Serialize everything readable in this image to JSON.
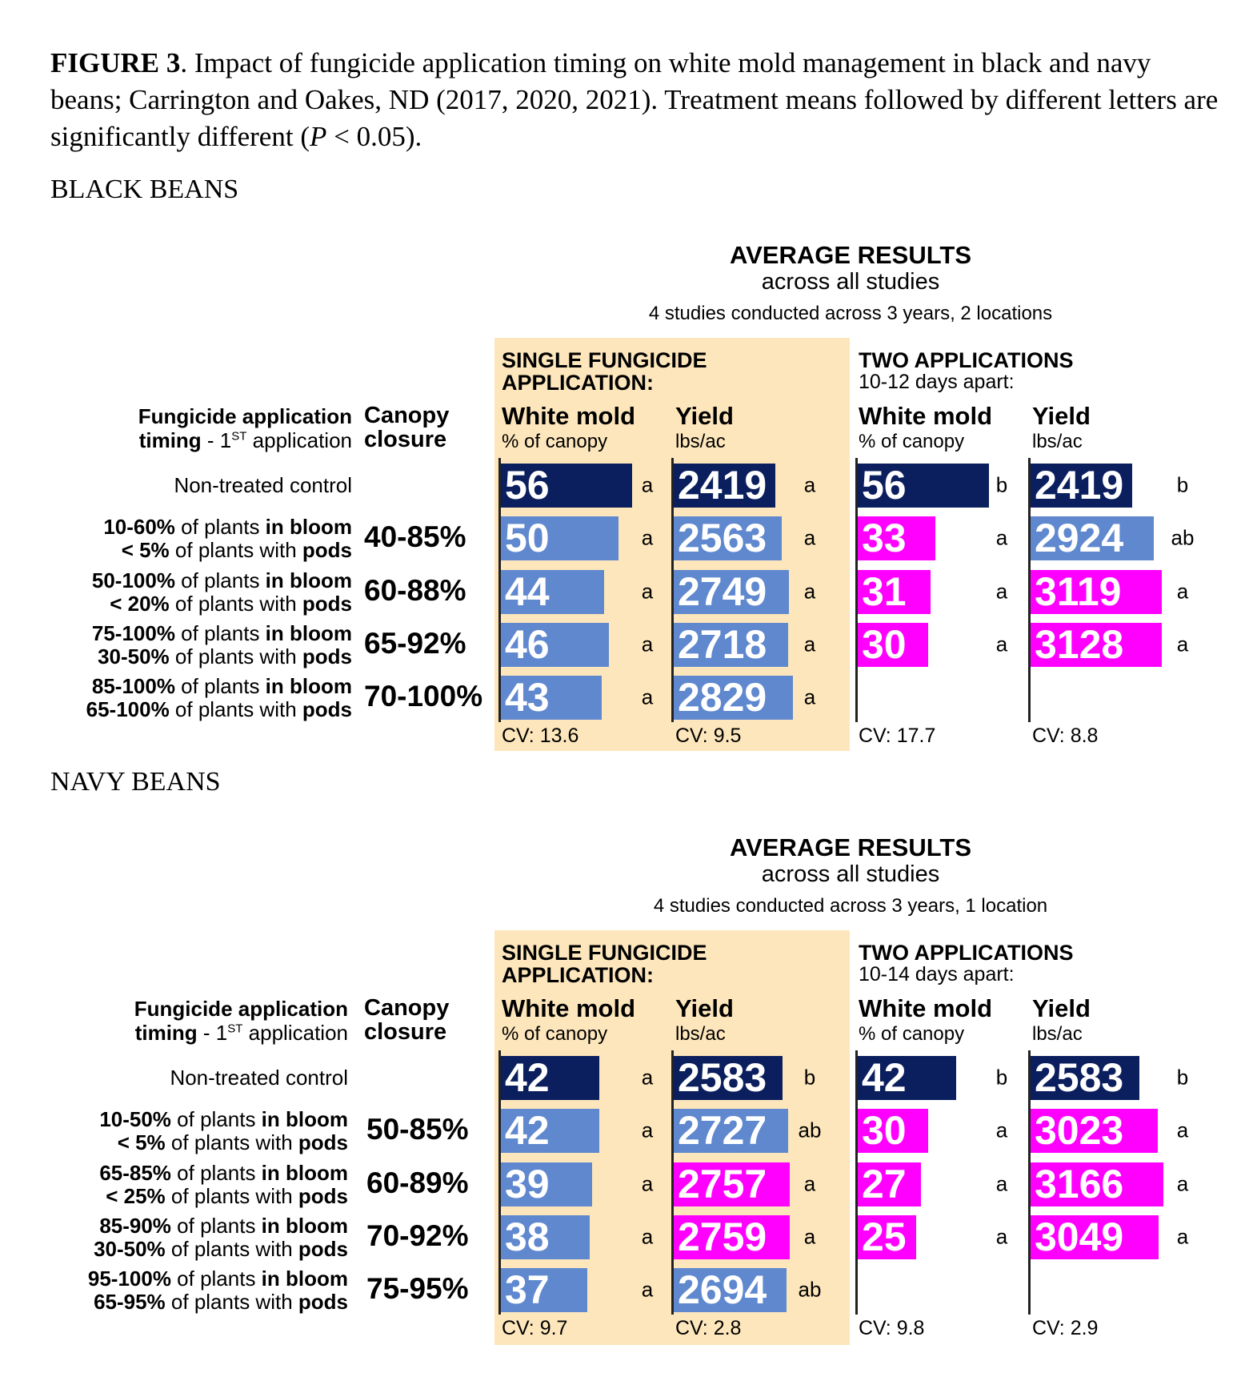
{
  "caption": {
    "label": "FIGURE 3",
    "text": ". Impact of fungicide application timing on white mold management in black and navy beans; Carrington and Oakes, ND (2017, 2020, 2021). Treatment means followed by different letters are significantly different (",
    "p": "P",
    "tail": " < 0.05)."
  },
  "colors": {
    "control": "#0b1f5e",
    "nodiff": "#5f88cf",
    "sig": "#ff00ff",
    "tan": "#fde6bb"
  },
  "chart_data": [
    {
      "type": "bar",
      "title": "BLACK BEANS",
      "avg_title": "AVERAGE RESULTS",
      "avg_sub": "across all studies",
      "avg_note": "4 studies conducted across 3 years, 2 locations",
      "single_header": [
        "SINGLE FUNGICIDE",
        "APPLICATION:"
      ],
      "two_header": "TWO APPLICATIONS",
      "two_sub": "10-12 days apart:",
      "timing_header": [
        [
          {
            "t": "Fungicide application",
            "b": 1
          }
        ],
        [
          {
            "t": "timing",
            "b": 1
          },
          {
            "t": " - 1"
          },
          {
            "t": "ST",
            "sup": 1
          },
          {
            "t": " application"
          }
        ]
      ],
      "canopy_header": [
        "Canopy",
        "closure"
      ],
      "columns": [
        {
          "title": "White mold",
          "unit": "% of canopy",
          "cv": "CV:  13.6"
        },
        {
          "title": "Yield",
          "unit": "lbs/ac",
          "cv": "CV:  9.5"
        },
        {
          "title": "White mold",
          "unit": "% of canopy",
          "cv": "CV:  17.7"
        },
        {
          "title": "Yield",
          "unit": "lbs/ac",
          "cv": "CV:  8.8"
        }
      ],
      "rows": [
        {
          "timing": [
            [
              {
                "t": "Non-treated control"
              }
            ]
          ],
          "canopy": "",
          "cells": [
            {
              "v": 56,
              "l": "a",
              "c": "control"
            },
            {
              "v": 2419,
              "l": "a",
              "c": "control"
            },
            {
              "v": 56,
              "l": "b",
              "c": "control"
            },
            {
              "v": 2419,
              "l": "b",
              "c": "control"
            }
          ]
        },
        {
          "timing": [
            [
              {
                "t": "10-60%",
                "b": 1
              },
              {
                "t": " of plants "
              },
              {
                "t": "in bloom",
                "b": 1
              }
            ],
            [
              {
                "t": "< 5%",
                "b": 1
              },
              {
                "t": " of plants with "
              },
              {
                "t": "pods",
                "b": 1
              }
            ]
          ],
          "canopy": "40-85%",
          "cells": [
            {
              "v": 50,
              "l": "a",
              "c": "nodiff"
            },
            {
              "v": 2563,
              "l": "a",
              "c": "nodiff"
            },
            {
              "v": 33,
              "l": "a",
              "c": "sig"
            },
            {
              "v": 2924,
              "l": "ab",
              "c": "nodiff"
            }
          ]
        },
        {
          "timing": [
            [
              {
                "t": "50-100%",
                "b": 1
              },
              {
                "t": " of plants "
              },
              {
                "t": "in bloom",
                "b": 1
              }
            ],
            [
              {
                "t": "< 20%",
                "b": 1
              },
              {
                "t": " of plants with "
              },
              {
                "t": "pods",
                "b": 1
              }
            ]
          ],
          "canopy": "60-88%",
          "cells": [
            {
              "v": 44,
              "l": "a",
              "c": "nodiff"
            },
            {
              "v": 2749,
              "l": "a",
              "c": "nodiff"
            },
            {
              "v": 31,
              "l": "a",
              "c": "sig"
            },
            {
              "v": 3119,
              "l": "a",
              "c": "sig"
            }
          ]
        },
        {
          "timing": [
            [
              {
                "t": "75-100%",
                "b": 1
              },
              {
                "t": " of plants "
              },
              {
                "t": "in bloom",
                "b": 1
              }
            ],
            [
              {
                "t": "30-50%",
                "b": 1
              },
              {
                "t": " of plants with "
              },
              {
                "t": "pods",
                "b": 1
              }
            ]
          ],
          "canopy": "65-92%",
          "cells": [
            {
              "v": 46,
              "l": "a",
              "c": "nodiff"
            },
            {
              "v": 2718,
              "l": "a",
              "c": "nodiff"
            },
            {
              "v": 30,
              "l": "a",
              "c": "sig"
            },
            {
              "v": 3128,
              "l": "a",
              "c": "sig"
            }
          ]
        },
        {
          "timing": [
            [
              {
                "t": "85-100%",
                "b": 1
              },
              {
                "t": " of plants "
              },
              {
                "t": "in bloom",
                "b": 1
              }
            ],
            [
              {
                "t": "65-100%",
                "b": 1
              },
              {
                "t": " of plants with "
              },
              {
                "t": "pods",
                "b": 1
              }
            ]
          ],
          "canopy": "70-100%",
          "cells": [
            {
              "v": 43,
              "l": "a",
              "c": "nodiff"
            },
            {
              "v": 2829,
              "l": "a",
              "c": "nodiff"
            },
            null,
            null
          ]
        }
      ]
    },
    {
      "type": "bar",
      "title": "NAVY BEANS",
      "avg_title": "AVERAGE RESULTS",
      "avg_sub": "across all studies",
      "avg_note": "4 studies conducted across 3 years, 1 location",
      "single_header": [
        "SINGLE FUNGICIDE",
        "APPLICATION:"
      ],
      "two_header": "TWO APPLICATIONS",
      "two_sub": "10-14 days apart:",
      "timing_header": [
        [
          {
            "t": "Fungicide application",
            "b": 1
          }
        ],
        [
          {
            "t": "timing",
            "b": 1
          },
          {
            "t": " - 1"
          },
          {
            "t": "ST",
            "sup": 1
          },
          {
            "t": " application"
          }
        ]
      ],
      "canopy_header": [
        "Canopy",
        "closure"
      ],
      "columns": [
        {
          "title": "White mold",
          "unit": "% of canopy",
          "cv": "CV:  9.7"
        },
        {
          "title": "Yield",
          "unit": "lbs/ac",
          "cv": "CV:  2.8"
        },
        {
          "title": "White mold",
          "unit": "% of canopy",
          "cv": "CV:  9.8"
        },
        {
          "title": "Yield",
          "unit": "lbs/ac",
          "cv": "CV:  2.9"
        }
      ],
      "rows": [
        {
          "timing": [
            [
              {
                "t": "Non-treated control"
              }
            ]
          ],
          "canopy": "",
          "cells": [
            {
              "v": 42,
              "l": "a",
              "c": "control"
            },
            {
              "v": 2583,
              "l": "b",
              "c": "control"
            },
            {
              "v": 42,
              "l": "b",
              "c": "control"
            },
            {
              "v": 2583,
              "l": "b",
              "c": "control"
            }
          ]
        },
        {
          "timing": [
            [
              {
                "t": "10-50%",
                "b": 1
              },
              {
                "t": " of plants "
              },
              {
                "t": "in bloom",
                "b": 1
              }
            ],
            [
              {
                "t": "< 5%",
                "b": 1
              },
              {
                "t": " of plants with "
              },
              {
                "t": "pods",
                "b": 1
              }
            ]
          ],
          "canopy": "50-85%",
          "cells": [
            {
              "v": 42,
              "l": "a",
              "c": "nodiff"
            },
            {
              "v": 2727,
              "l": "ab",
              "c": "nodiff"
            },
            {
              "v": 30,
              "l": "a",
              "c": "sig"
            },
            {
              "v": 3023,
              "l": "a",
              "c": "sig"
            }
          ]
        },
        {
          "timing": [
            [
              {
                "t": "65-85%",
                "b": 1
              },
              {
                "t": " of plants "
              },
              {
                "t": "in bloom",
                "b": 1
              }
            ],
            [
              {
                "t": "< 25%",
                "b": 1
              },
              {
                "t": " of plants with "
              },
              {
                "t": "pods",
                "b": 1
              }
            ]
          ],
          "canopy": "60-89%",
          "cells": [
            {
              "v": 39,
              "l": "a",
              "c": "nodiff"
            },
            {
              "v": 2757,
              "l": "a",
              "c": "sig"
            },
            {
              "v": 27,
              "l": "a",
              "c": "sig"
            },
            {
              "v": 3166,
              "l": "a",
              "c": "sig"
            }
          ]
        },
        {
          "timing": [
            [
              {
                "t": "85-90%",
                "b": 1
              },
              {
                "t": " of plants "
              },
              {
                "t": "in bloom",
                "b": 1
              }
            ],
            [
              {
                "t": "30-50%",
                "b": 1
              },
              {
                "t": " of plants with "
              },
              {
                "t": "pods",
                "b": 1
              }
            ]
          ],
          "canopy": "70-92%",
          "cells": [
            {
              "v": 38,
              "l": "a",
              "c": "nodiff"
            },
            {
              "v": 2759,
              "l": "a",
              "c": "sig"
            },
            {
              "v": 25,
              "l": "a",
              "c": "sig"
            },
            {
              "v": 3049,
              "l": "a",
              "c": "sig"
            }
          ]
        },
        {
          "timing": [
            [
              {
                "t": "95-100%",
                "b": 1
              },
              {
                "t": " of plants "
              },
              {
                "t": "in bloom",
                "b": 1
              }
            ],
            [
              {
                "t": "65-95%",
                "b": 1
              },
              {
                "t": " of plants with "
              },
              {
                "t": "pods",
                "b": 1
              }
            ]
          ],
          "canopy": "75-95%",
          "cells": [
            {
              "v": 37,
              "l": "a",
              "c": "nodiff"
            },
            {
              "v": 2694,
              "l": "ab",
              "c": "nodiff"
            },
            null,
            null
          ]
        }
      ]
    }
  ]
}
